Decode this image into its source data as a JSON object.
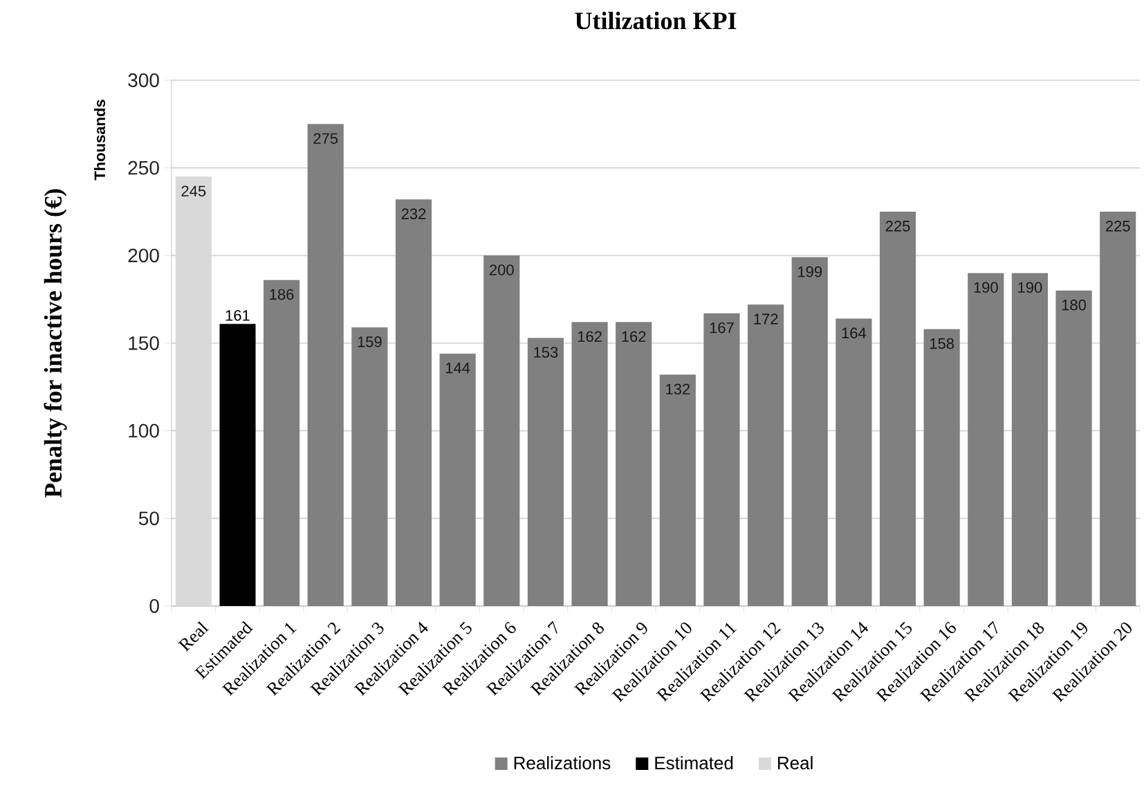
{
  "chart_data": {
    "type": "bar",
    "title": "Utilization KPI",
    "ylabel": "Penalty for inactive hours (€)",
    "annotations": [
      "Thousands"
    ],
    "categories": [
      "Real",
      "Estimated",
      "Realization 1",
      "Realization 2",
      "Realization 3",
      "Realization 4",
      "Realization 5",
      "Realization 6",
      "Realization 7",
      "Realization 8",
      "Realization 9",
      "Realization 10",
      "Realization 11",
      "Realization 12",
      "Realization 13",
      "Realization 14",
      "Realization 15",
      "Realization 16",
      "Realization 17",
      "Realization 18",
      "Realization 19",
      "Realization 20"
    ],
    "series": [
      {
        "name": "Realizations",
        "color": "#808080",
        "values": [
          null,
          null,
          186,
          275,
          159,
          232,
          144,
          200,
          153,
          162,
          162,
          132,
          167,
          172,
          199,
          164,
          225,
          158,
          190,
          190,
          180,
          225
        ]
      },
      {
        "name": "Estimated",
        "color": "#000000",
        "values": [
          null,
          161,
          null,
          null,
          null,
          null,
          null,
          null,
          null,
          null,
          null,
          null,
          null,
          null,
          null,
          null,
          null,
          null,
          null,
          null,
          null,
          null
        ]
      },
      {
        "name": "Real",
        "color": "#d9d9d9",
        "values": [
          245,
          null,
          null,
          null,
          null,
          null,
          null,
          null,
          null,
          null,
          null,
          null,
          null,
          null,
          null,
          null,
          null,
          null,
          null,
          null,
          null,
          null
        ]
      }
    ],
    "stacked": true,
    "ylim": [
      0,
      300
    ],
    "yticks": [
      0,
      50,
      100,
      150,
      200,
      250,
      300
    ],
    "grid": "y",
    "legend": "bottom",
    "data_labels": true
  }
}
